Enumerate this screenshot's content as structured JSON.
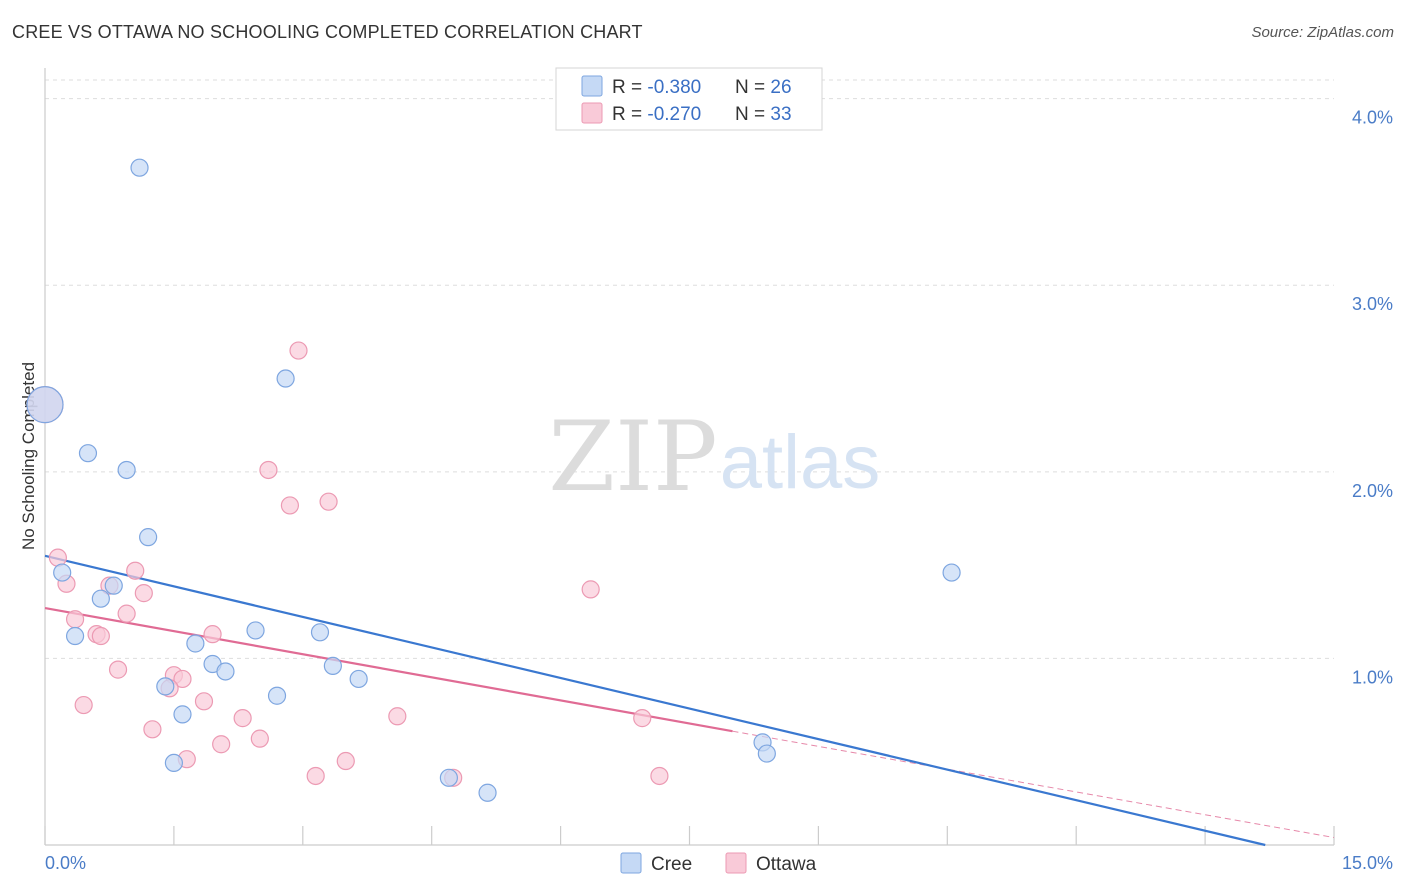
{
  "header": {
    "title": "CREE VS OTTAWA NO SCHOOLING COMPLETED CORRELATION CHART",
    "source": "Source: ZipAtlas.com"
  },
  "watermark": {
    "zip": "ZIP",
    "atlas": "atlas"
  },
  "colors": {
    "cree_fill": "#c5d9f5",
    "cree_stroke": "#7ea6e0",
    "cree_line": "#3a78d0",
    "ottawa_fill": "#f9cad8",
    "ottawa_stroke": "#ec9ab3",
    "ottawa_line": "#e06b94",
    "value_blue": "#3a6fc4",
    "grid": "#dddddd"
  },
  "legend_top": {
    "rows": [
      {
        "r_label": "R = ",
        "r_value": "-0.380",
        "n_label": "N = ",
        "n_value": "26"
      },
      {
        "r_label": "R = ",
        "r_value": "-0.270",
        "n_label": "N = ",
        "n_value": "33"
      }
    ]
  },
  "legend_bottom": {
    "cree": "Cree",
    "ottawa": "Ottawa"
  },
  "chart_data": {
    "type": "scatter",
    "title": "CREE VS OTTAWA NO SCHOOLING COMPLETED CORRELATION CHART",
    "xlabel": "",
    "ylabel": "No Schooling Completed",
    "xlim": [
      0,
      15
    ],
    "ylim": [
      0,
      4.1
    ],
    "x_tick_labels": {
      "min": "0.0%",
      "max": "15.0%"
    },
    "y_ticks": [
      {
        "value": 1,
        "label": "1.0%"
      },
      {
        "value": 2,
        "label": "2.0%"
      },
      {
        "value": 3,
        "label": "3.0%"
      },
      {
        "value": 4,
        "label": "4.0%"
      }
    ],
    "series": [
      {
        "name": "Cree",
        "r": -0.38,
        "n": 26,
        "trend": {
          "x0": 0,
          "y0": 1.55,
          "x1": 14.2,
          "y1": 0.0
        },
        "points": [
          {
            "x": 0.0,
            "y": 2.36,
            "big": true
          },
          {
            "x": 1.1,
            "y": 3.63
          },
          {
            "x": 0.5,
            "y": 2.1
          },
          {
            "x": 0.95,
            "y": 2.01
          },
          {
            "x": 2.8,
            "y": 2.5
          },
          {
            "x": 1.2,
            "y": 1.65
          },
          {
            "x": 0.2,
            "y": 1.46
          },
          {
            "x": 0.65,
            "y": 1.32
          },
          {
            "x": 0.8,
            "y": 1.39
          },
          {
            "x": 0.35,
            "y": 1.12
          },
          {
            "x": 1.75,
            "y": 1.08
          },
          {
            "x": 2.45,
            "y": 1.15
          },
          {
            "x": 3.2,
            "y": 1.14
          },
          {
            "x": 1.95,
            "y": 0.97
          },
          {
            "x": 2.1,
            "y": 0.93
          },
          {
            "x": 3.35,
            "y": 0.96
          },
          {
            "x": 3.65,
            "y": 0.89
          },
          {
            "x": 1.4,
            "y": 0.85
          },
          {
            "x": 2.7,
            "y": 0.8
          },
          {
            "x": 1.6,
            "y": 0.7
          },
          {
            "x": 10.55,
            "y": 1.46
          },
          {
            "x": 8.35,
            "y": 0.55
          },
          {
            "x": 8.4,
            "y": 0.49
          },
          {
            "x": 1.5,
            "y": 0.44
          },
          {
            "x": 4.7,
            "y": 0.36
          },
          {
            "x": 5.15,
            "y": 0.28
          }
        ]
      },
      {
        "name": "Ottawa",
        "r": -0.27,
        "n": 33,
        "trend": {
          "x0": 0,
          "y0": 1.27,
          "x1": 8.0,
          "y1": 0.61
        },
        "trend_ext": {
          "x0": 8.0,
          "y0": 0.61,
          "x1": 15.0,
          "y1": 0.04
        },
        "points": [
          {
            "x": 0.0,
            "y": 2.36,
            "big": true
          },
          {
            "x": 2.95,
            "y": 2.65
          },
          {
            "x": 2.6,
            "y": 2.01
          },
          {
            "x": 2.85,
            "y": 1.82
          },
          {
            "x": 3.3,
            "y": 1.84
          },
          {
            "x": 0.15,
            "y": 1.54
          },
          {
            "x": 1.05,
            "y": 1.47
          },
          {
            "x": 0.25,
            "y": 1.4
          },
          {
            "x": 0.75,
            "y": 1.39
          },
          {
            "x": 1.15,
            "y": 1.35
          },
          {
            "x": 6.35,
            "y": 1.37
          },
          {
            "x": 0.35,
            "y": 1.21
          },
          {
            "x": 0.95,
            "y": 1.24
          },
          {
            "x": 0.6,
            "y": 1.13
          },
          {
            "x": 0.65,
            "y": 1.12
          },
          {
            "x": 1.95,
            "y": 1.13
          },
          {
            "x": 0.85,
            "y": 0.94
          },
          {
            "x": 1.5,
            "y": 0.91
          },
          {
            "x": 1.6,
            "y": 0.89
          },
          {
            "x": 1.45,
            "y": 0.84
          },
          {
            "x": 1.85,
            "y": 0.77
          },
          {
            "x": 0.45,
            "y": 0.75
          },
          {
            "x": 2.3,
            "y": 0.68
          },
          {
            "x": 4.1,
            "y": 0.69
          },
          {
            "x": 6.95,
            "y": 0.68
          },
          {
            "x": 1.25,
            "y": 0.62
          },
          {
            "x": 2.05,
            "y": 0.54
          },
          {
            "x": 2.5,
            "y": 0.57
          },
          {
            "x": 1.65,
            "y": 0.46
          },
          {
            "x": 3.5,
            "y": 0.45
          },
          {
            "x": 3.15,
            "y": 0.37
          },
          {
            "x": 4.75,
            "y": 0.36
          },
          {
            "x": 7.15,
            "y": 0.37
          }
        ]
      }
    ]
  }
}
